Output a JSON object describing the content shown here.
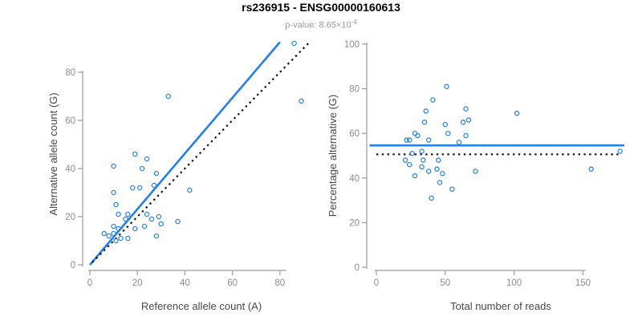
{
  "header": {
    "title": "rs236915 - ENSG00000160613",
    "pvalue_label": "p-value: 8.65×10",
    "pvalue_exponent": "-4"
  },
  "colors": {
    "point_stroke": "#2e86e0",
    "solid_line": "#2380e8",
    "dotted_line": "#121212",
    "axis": "#9b9b9b",
    "tick_label": "#8c8c8c",
    "axis_label": "#474747",
    "title": "#000000",
    "subtitle": "#9a9a9a",
    "background": "#ffffff"
  },
  "chart_data": [
    {
      "type": "scatter",
      "title": "rs236915 - ENSG00000160613",
      "subtitle": "p-value: 8.65×10-4",
      "xlabel": "Reference allele count (A)",
      "ylabel": "Alternative allele count (G)",
      "xticks": [
        0,
        20,
        40,
        60,
        80
      ],
      "yticks": [
        0,
        20,
        40,
        60,
        80
      ],
      "xlim": [
        0,
        94
      ],
      "ylim": [
        0,
        95
      ],
      "grid": false,
      "legend": false,
      "points": [
        [
          33,
          70
        ],
        [
          86,
          92
        ],
        [
          89,
          68
        ],
        [
          10,
          41
        ],
        [
          19,
          46
        ],
        [
          24,
          44
        ],
        [
          22,
          40
        ],
        [
          28,
          38
        ],
        [
          18,
          32
        ],
        [
          21,
          32
        ],
        [
          10,
          30
        ],
        [
          27,
          33
        ],
        [
          42,
          31
        ],
        [
          11,
          25
        ],
        [
          12,
          21
        ],
        [
          16,
          21
        ],
        [
          15,
          19
        ],
        [
          24,
          21
        ],
        [
          26,
          19
        ],
        [
          29,
          20
        ],
        [
          23,
          16
        ],
        [
          30,
          17
        ],
        [
          37,
          18
        ],
        [
          19,
          15
        ],
        [
          10,
          16
        ],
        [
          12,
          15
        ],
        [
          10,
          13
        ],
        [
          8,
          12
        ],
        [
          11,
          10
        ],
        [
          13,
          11
        ],
        [
          16,
          11
        ],
        [
          28,
          12
        ],
        [
          6,
          13
        ]
      ],
      "lines": [
        {
          "name": "regression-line",
          "style": "solid",
          "x1": 0,
          "y1": 0,
          "x2": 80,
          "y2": 92.5
        },
        {
          "name": "identity-line",
          "style": "dotted",
          "x1": 1,
          "y1": 1,
          "x2": 93,
          "y2": 93
        }
      ]
    },
    {
      "type": "scatter",
      "title": "",
      "xlabel": "Total number of reads",
      "ylabel": "Percentage alternative (G)",
      "xticks": [
        0,
        50,
        100,
        150
      ],
      "yticks": [
        0,
        20,
        40,
        60,
        80,
        100
      ],
      "xlim": [
        0,
        180
      ],
      "ylim": [
        0,
        100
      ],
      "grid": false,
      "legend": false,
      "points": [
        [
          51,
          81
        ],
        [
          41,
          75
        ],
        [
          36,
          70
        ],
        [
          65,
          71
        ],
        [
          102,
          69
        ],
        [
          67,
          66
        ],
        [
          35,
          65
        ],
        [
          63,
          65
        ],
        [
          50,
          64
        ],
        [
          52,
          60
        ],
        [
          65,
          59
        ],
        [
          28,
          60
        ],
        [
          30,
          59
        ],
        [
          38,
          57
        ],
        [
          24,
          57
        ],
        [
          22,
          57
        ],
        [
          60,
          56
        ],
        [
          26,
          51
        ],
        [
          33,
          52
        ],
        [
          177,
          52
        ],
        [
          21,
          48
        ],
        [
          24,
          46
        ],
        [
          34,
          48
        ],
        [
          45,
          48
        ],
        [
          33,
          45
        ],
        [
          44,
          44
        ],
        [
          38,
          43
        ],
        [
          48,
          42
        ],
        [
          28,
          41
        ],
        [
          72,
          43
        ],
        [
          156,
          44
        ],
        [
          46,
          38
        ],
        [
          55,
          35
        ],
        [
          40,
          31
        ]
      ],
      "lines": [
        {
          "name": "mean-line",
          "style": "solid",
          "x1": -5,
          "y1": 54.6,
          "x2": 180,
          "y2": 54.6
        },
        {
          "name": "reference-line",
          "style": "dotted",
          "x1": 0,
          "y1": 50.6,
          "x2": 177,
          "y2": 50.6
        }
      ]
    }
  ]
}
